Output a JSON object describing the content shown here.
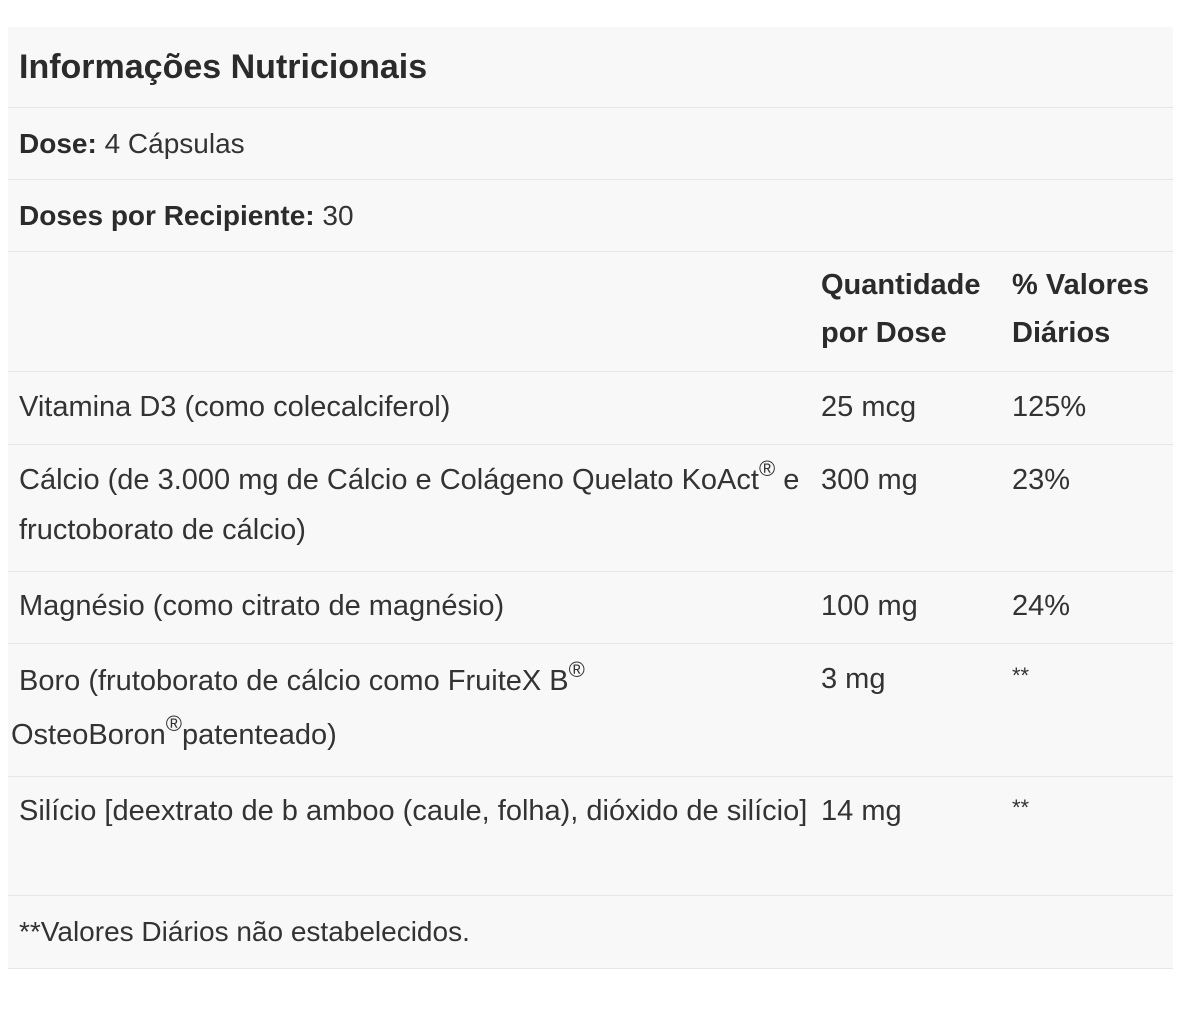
{
  "title": "Informações Nutricionais",
  "dose": {
    "label": "Dose:",
    "value": "4 Cápsulas"
  },
  "servings": {
    "label": "Doses por Recipiente:",
    "value": "30"
  },
  "columns": {
    "amount_line1": "Quantidade",
    "amount_line2": "por Dose",
    "dv_line1": "% Valores",
    "dv_line2": "Diários"
  },
  "rows": [
    {
      "name": "Vitamina D3 (como colecalciferol)",
      "amount": "25 mcg",
      "dv": "125%"
    },
    {
      "name_part1": "Cálcio (de 3.000 mg de Cálcio e Colágeno Quelato KoAct",
      "sup1": "®",
      "name_part2": " e fructoborato de cálcio)",
      "amount": "300 mg",
      "dv": "23%"
    },
    {
      "name": "Magnésio (como citrato de magnésio)",
      "amount": "100 mg",
      "dv": "24%"
    },
    {
      "name_part1": "Boro (frutoborato de cálcio como FruiteX B",
      "sup1": "®",
      "name_part2": " OsteoBoron",
      "sup2": "®",
      "name_part3": "patenteado)",
      "amount": "3 mg",
      "dv": "**"
    },
    {
      "name": "Silício [deextrato de b amboo (caule, folha), dióxido de silício]",
      "amount": "14 mg",
      "dv": "**"
    }
  ],
  "footnote": "**Valores Diários não estabelecidos."
}
